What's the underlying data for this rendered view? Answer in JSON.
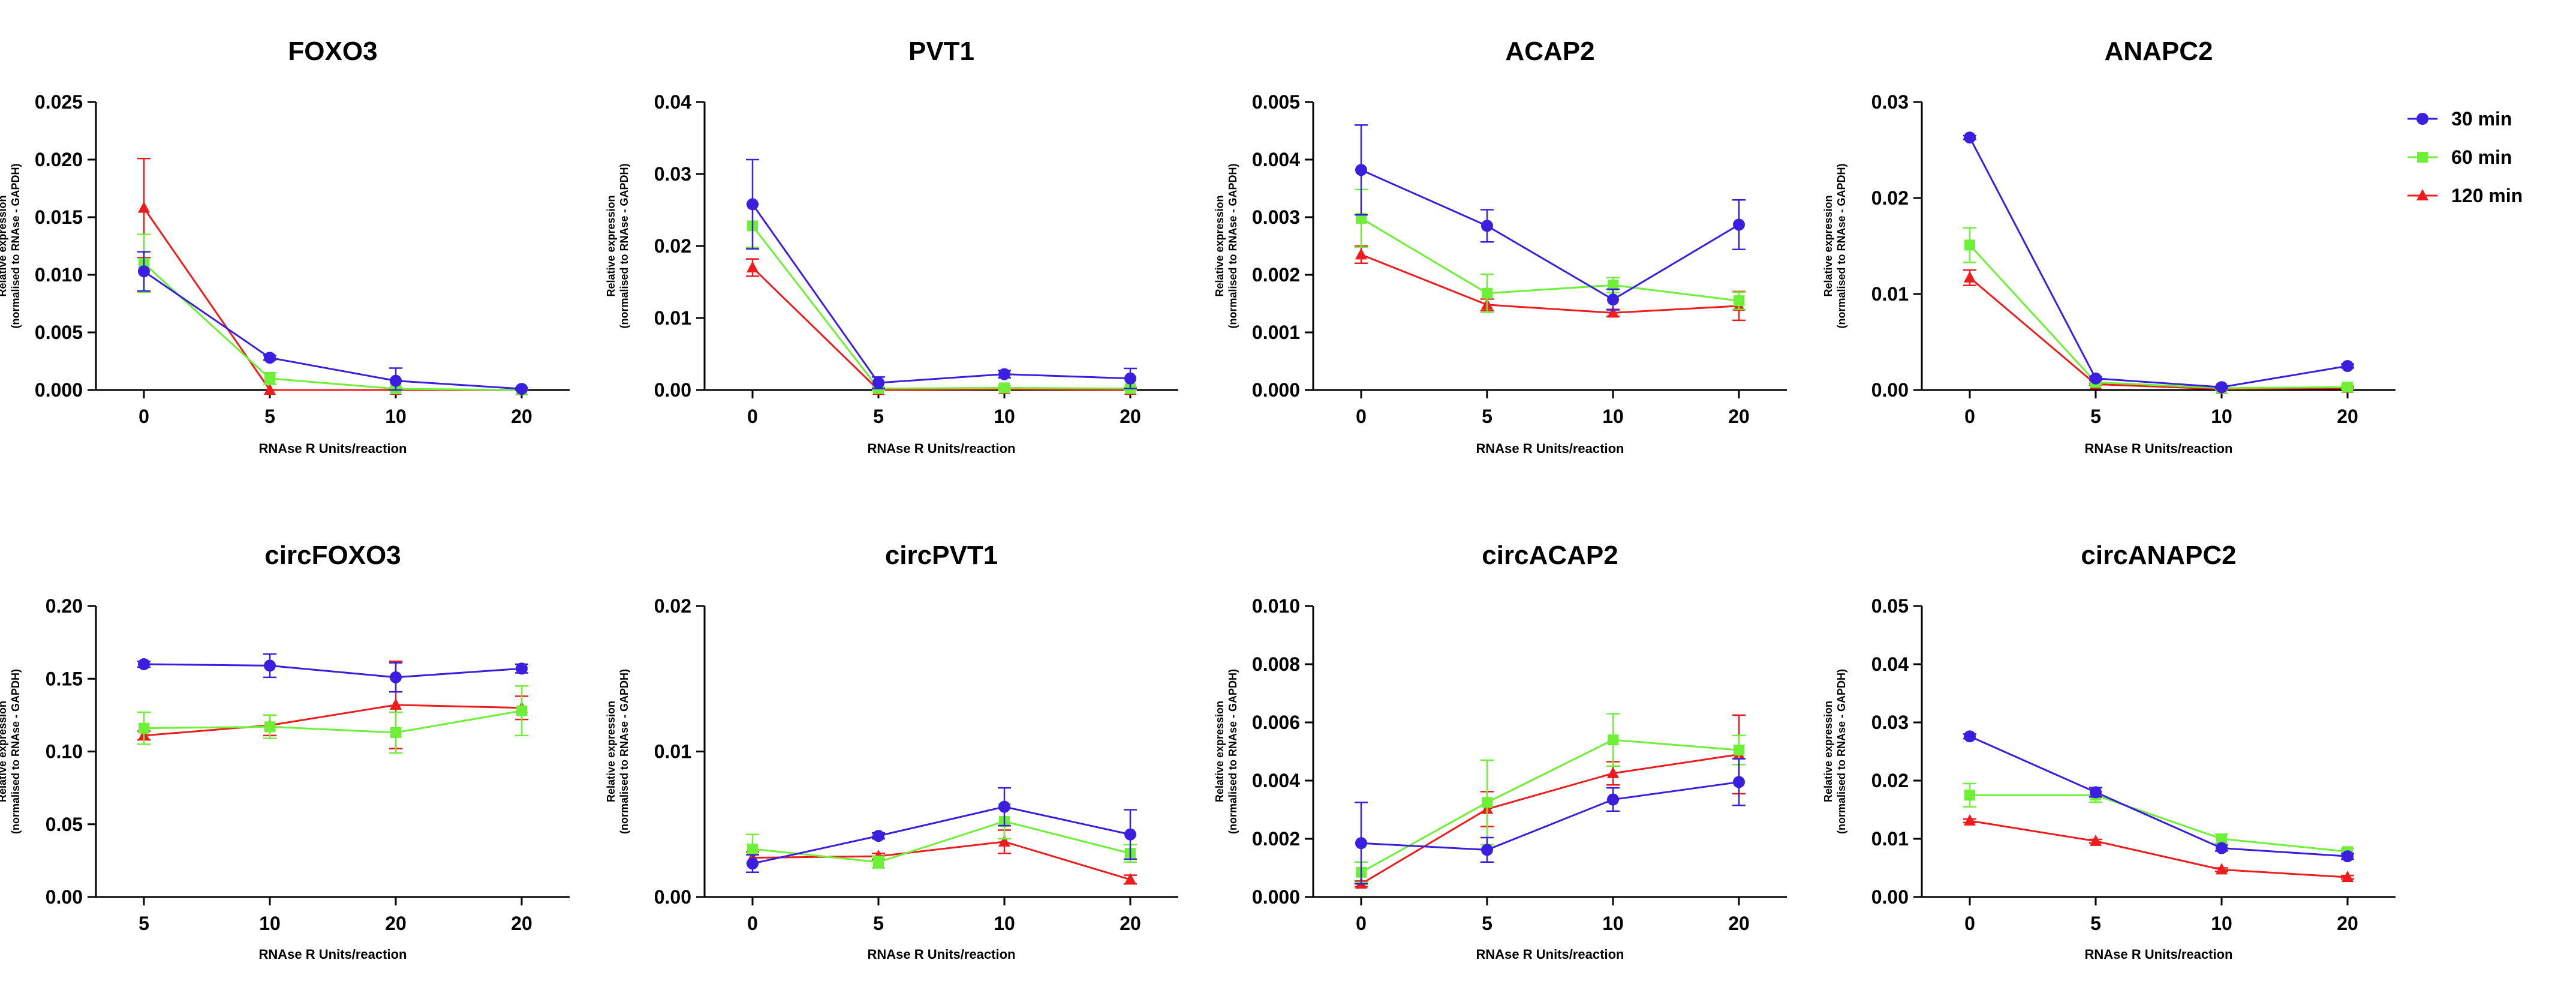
{
  "colors": {
    "series_30": "#3b1fe0",
    "series_60": "#6ef036",
    "series_120": "#ee1c1c",
    "axis": "#000000"
  },
  "legend": [
    "30 min",
    "60 min",
    "120 min"
  ],
  "chart_data": [
    {
      "type": "line",
      "title": "FOXO3",
      "xlabel": "RNAse R Units/reaction",
      "ylabel_line1": "Relative expression",
      "ylabel_line2": "(normalised to RNAse - GAPDH)",
      "categories": [
        "0",
        "5",
        "10",
        "20"
      ],
      "ylim": [
        0,
        0.025
      ],
      "yticks": [
        "0.000",
        "0.005",
        "0.010",
        "0.015",
        "0.020",
        "0.025"
      ],
      "series": [
        {
          "name": "30 min",
          "values": [
            0.0103,
            0.0028,
            0.0008,
            0.0001
          ],
          "errors": [
            0.0017,
            0.0002,
            0.0011,
            0.0001
          ]
        },
        {
          "name": "60 min",
          "values": [
            0.011,
            0.001,
            0.0001,
            0.0
          ],
          "errors": [
            0.0025,
            0.0005,
            0.0001,
            0.0
          ]
        },
        {
          "name": "120 min",
          "values": [
            0.0158,
            0.0,
            0.0,
            0.0
          ],
          "errors": [
            0.0043,
            0.0,
            0.0,
            0.0
          ]
        }
      ]
    },
    {
      "type": "line",
      "title": "PVT1",
      "xlabel": "RNAse R Units/reaction",
      "ylabel_line1": "Relative expression",
      "ylabel_line2": "(normalised to RNAse - GAPDH)",
      "categories": [
        "0",
        "5",
        "10",
        "20"
      ],
      "ylim": [
        0,
        0.04
      ],
      "yticks": [
        "0.00",
        "0.01",
        "0.02",
        "0.03",
        "0.04"
      ],
      "series": [
        {
          "name": "30 min",
          "values": [
            0.0258,
            0.001,
            0.0022,
            0.0016
          ],
          "errors": [
            0.0062,
            0.0008,
            0.0005,
            0.0014
          ]
        },
        {
          "name": "60 min",
          "values": [
            0.0228,
            0.0002,
            0.0003,
            0.0002
          ],
          "errors": [
            0.003,
            0.0002,
            0.0003,
            0.0002
          ]
        },
        {
          "name": "120 min",
          "values": [
            0.017,
            0.0,
            0.0001,
            0.0
          ],
          "errors": [
            0.0012,
            0.0,
            0.0001,
            0.0
          ]
        }
      ]
    },
    {
      "type": "line",
      "title": "ACAP2",
      "xlabel": "RNAse R Units/reaction",
      "ylabel_line1": "Relative expression",
      "ylabel_line2": "(normalised to RNAse - GAPDH)",
      "categories": [
        "0",
        "5",
        "10",
        "20"
      ],
      "ylim": [
        0,
        0.005
      ],
      "yticks": [
        "0.000",
        "0.001",
        "0.002",
        "0.003",
        "0.004",
        "0.005"
      ],
      "series": [
        {
          "name": "30 min",
          "values": [
            0.00382,
            0.00285,
            0.00157,
            0.00287
          ],
          "errors": [
            0.00078,
            0.00028,
            0.00018,
            0.00043
          ]
        },
        {
          "name": "60 min",
          "values": [
            0.00298,
            0.00168,
            0.00182,
            0.00155
          ],
          "errors": [
            0.0005,
            0.00033,
            0.00013,
            0.00015
          ]
        },
        {
          "name": "120 min",
          "values": [
            0.00235,
            0.00148,
            0.00134,
            0.00146
          ],
          "errors": [
            0.00015,
            0.0001,
            6e-05,
            0.00025
          ]
        }
      ]
    },
    {
      "type": "line",
      "title": "ANAPC2",
      "xlabel": "RNAse R Units/reaction",
      "ylabel_line1": "Relative expression",
      "ylabel_line2": "(normalised to RNAse - GAPDH)",
      "categories": [
        "0",
        "5",
        "10",
        "20"
      ],
      "ylim": [
        0,
        0.03
      ],
      "yticks": [
        "0.00",
        "0.01",
        "0.02",
        "0.03"
      ],
      "series": [
        {
          "name": "30 min",
          "values": [
            0.0263,
            0.0012,
            0.0003,
            0.0025
          ],
          "errors": [
            0.0002,
            0.0002,
            0.0001,
            0.0002
          ]
        },
        {
          "name": "60 min",
          "values": [
            0.0151,
            0.0008,
            0.0002,
            0.0003
          ],
          "errors": [
            0.0018,
            0.0002,
            0.0001,
            0.0002
          ]
        },
        {
          "name": "120 min",
          "values": [
            0.0117,
            0.0006,
            0.0001,
            0.0002
          ],
          "errors": [
            0.0008,
            0.0001,
            0.0001,
            0.0001
          ]
        }
      ]
    },
    {
      "type": "line",
      "title": "circFOXO3",
      "xlabel": "RNAse R Units/reaction",
      "ylabel_line1": "Relative expression",
      "ylabel_line2": "(normalised to RNAse - GAPDH)",
      "categories": [
        "5",
        "10",
        "20",
        "20"
      ],
      "ylim": [
        0,
        0.2
      ],
      "yticks": [
        "0.00",
        "0.05",
        "0.10",
        "0.15",
        "0.20"
      ],
      "series": [
        {
          "name": "30 min",
          "values": [
            0.16,
            0.159,
            0.151,
            0.157
          ],
          "errors": [
            0.002,
            0.008,
            0.01,
            0.003
          ]
        },
        {
          "name": "60 min",
          "values": [
            0.116,
            0.117,
            0.113,
            0.128
          ],
          "errors": [
            0.011,
            0.008,
            0.014,
            0.017
          ]
        },
        {
          "name": "120 min",
          "values": [
            0.111,
            0.118,
            0.132,
            0.13
          ],
          "errors": [
            0.003,
            0.007,
            0.03,
            0.008
          ]
        }
      ]
    },
    {
      "type": "line",
      "title": "circPVT1",
      "xlabel": "RNAse R Units/reaction",
      "ylabel_line1": "Relative expression",
      "ylabel_line2": "(normalised to RNAse - GAPDH)",
      "categories": [
        "0",
        "5",
        "10",
        "20"
      ],
      "ylim": [
        0,
        0.02
      ],
      "yticks": [
        "0.00",
        "0.01",
        "0.02"
      ],
      "series": [
        {
          "name": "30 min",
          "values": [
            0.0023,
            0.0042,
            0.0062,
            0.0043
          ],
          "errors": [
            0.0006,
            0.0002,
            0.0013,
            0.0017
          ]
        },
        {
          "name": "60 min",
          "values": [
            0.0033,
            0.0024,
            0.0052,
            0.003
          ],
          "errors": [
            0.001,
            0.0004,
            0.0012,
            0.0006
          ]
        },
        {
          "name": "120 min",
          "values": [
            0.0027,
            0.0028,
            0.0038,
            0.0012
          ],
          "errors": [
            0.0004,
            0.0002,
            0.0008,
            0.0003
          ]
        }
      ]
    },
    {
      "type": "line",
      "title": "circACAP2",
      "xlabel": "RNAse R Units/reaction",
      "ylabel_line1": "Relative expression",
      "ylabel_line2": "(normalised to RNAse - GAPDH)",
      "categories": [
        "0",
        "5",
        "10",
        "20"
      ],
      "ylim": [
        0,
        0.01
      ],
      "yticks": [
        "0.000",
        "0.002",
        "0.004",
        "0.006",
        "0.008",
        "0.010"
      ],
      "series": [
        {
          "name": "30 min",
          "values": [
            0.00185,
            0.00162,
            0.00335,
            0.00395
          ],
          "errors": [
            0.0014,
            0.00042,
            0.0004,
            0.0008
          ]
        },
        {
          "name": "60 min",
          "values": [
            0.00085,
            0.00325,
            0.0054,
            0.00505
          ],
          "errors": [
            0.00035,
            0.00145,
            0.0009,
            0.0005
          ]
        },
        {
          "name": "120 min",
          "values": [
            0.00045,
            0.00302,
            0.00425,
            0.0049
          ],
          "errors": [
            0.0001,
            0.0006,
            0.0004,
            0.00135
          ]
        }
      ]
    },
    {
      "type": "line",
      "title": "circANAPC2",
      "xlabel": "RNAse R Units/reaction",
      "ylabel_line1": "Relative expression",
      "ylabel_line2": "(normalised to RNAse - GAPDH)",
      "categories": [
        "0",
        "5",
        "10",
        "20"
      ],
      "ylim": [
        0,
        0.05
      ],
      "yticks": [
        "0.00",
        "0.01",
        "0.02",
        "0.03",
        "0.04",
        "0.05"
      ],
      "series": [
        {
          "name": "30 min",
          "values": [
            0.0276,
            0.018,
            0.0084,
            0.007
          ],
          "errors": [
            0.0004,
            0.0008,
            0.0005,
            0.0005
          ]
        },
        {
          "name": "60 min",
          "values": [
            0.0175,
            0.0175,
            0.01,
            0.0078
          ],
          "errors": [
            0.002,
            0.0012,
            0.0008,
            0.0005
          ]
        },
        {
          "name": "120 min",
          "values": [
            0.0131,
            0.0096,
            0.0047,
            0.0034
          ],
          "errors": [
            0.0003,
            0.0003,
            0.0003,
            0.0003
          ]
        }
      ]
    }
  ]
}
